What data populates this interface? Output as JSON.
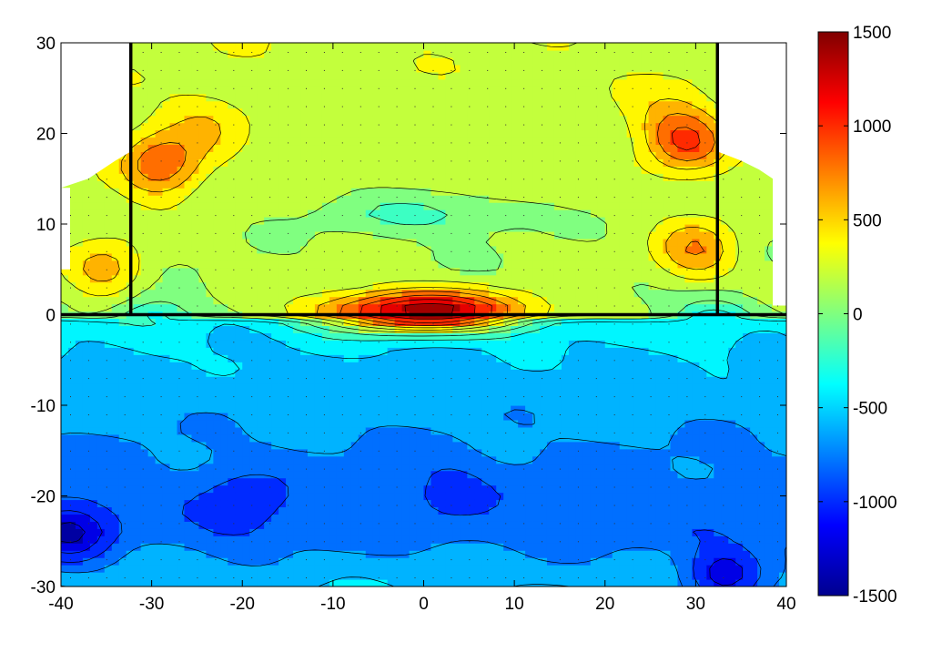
{
  "chart_data": {
    "type": "contour",
    "title": "",
    "xlabel": "",
    "ylabel": "",
    "xlim": [
      -40,
      40
    ],
    "ylim": [
      -30,
      30
    ],
    "x_ticks": [
      "-40",
      "-30",
      "-20",
      "-10",
      "0",
      "10",
      "20",
      "30",
      "40"
    ],
    "y_ticks": [
      "30",
      "20",
      "10",
      "0",
      "-10",
      "-20",
      "-30"
    ],
    "colorbar": {
      "range": [
        -1500,
        1500
      ],
      "colormap": "jet",
      "ticks": [
        "1500",
        "1000",
        "500",
        "0",
        "-500",
        "-1000",
        "-1500"
      ]
    },
    "structure_lines": [
      {
        "x": [
          -32.3,
          -32.3
        ],
        "y": [
          0,
          30
        ]
      },
      {
        "x": [
          32.4,
          32.4
        ],
        "y": [
          0,
          30
        ]
      },
      {
        "x": [
          -40,
          40
        ],
        "y": [
          0,
          0
        ]
      }
    ],
    "features": [
      {
        "x": 0,
        "y": 0.5,
        "value": 1500
      },
      {
        "x": -29,
        "y": 16.5,
        "value": 900
      },
      {
        "x": 29,
        "y": 19,
        "value": 850
      },
      {
        "x": 30,
        "y": 7,
        "value": 750
      },
      {
        "x": -35,
        "y": 5,
        "value": 650
      },
      {
        "x": -24,
        "y": 21,
        "value": 450
      },
      {
        "x": 27,
        "y": 22,
        "value": 420
      },
      {
        "x": 0,
        "y": 11,
        "value": -100
      },
      {
        "x": -39,
        "y": -24,
        "value": -1150
      },
      {
        "x": 33,
        "y": -29,
        "value": -1200
      },
      {
        "x": 3,
        "y": -19,
        "value": -800
      },
      {
        "x": -20,
        "y": -21,
        "value": -900
      },
      {
        "x": -30,
        "y": -2,
        "value": -500
      },
      {
        "x": 32,
        "y": -2,
        "value": -500
      }
    ]
  }
}
